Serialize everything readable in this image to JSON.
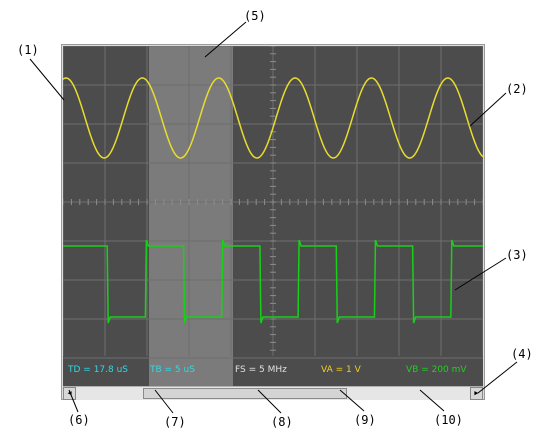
{
  "callouts": {
    "c1": "(1)",
    "c2": "(2)",
    "c3": "(3)",
    "c4": "(4)",
    "c5": "(5)",
    "c6": "(6)",
    "c7": "(7)",
    "c8": "(8)",
    "c9": "(9)",
    "c10": "(10)"
  },
  "status": {
    "td": "TD = 17.8 uS",
    "tb": "TB = 5 uS",
    "fs": "FS = 5 MHz",
    "va": "VA = 1 V",
    "vb": "VB = 200 mV"
  },
  "colors": {
    "screen_bg": "#4c4c4c",
    "grid": "#6e6e6e",
    "cursor_band": "#7b7b7b",
    "channel_a": "#e8dc2e",
    "channel_b": "#18d018",
    "td_text": "#30d8e8",
    "tb_text": "#30d8e8",
    "fs_text": "#e0e0e0",
    "va_text": "#f0d020",
    "vb_text": "#20d020"
  },
  "signals": {
    "channel_a": {
      "shape": "sine",
      "cycles_visible": 5.5
    },
    "channel_b": {
      "shape": "square",
      "cycles_visible": 5.5
    }
  },
  "scrollbar": {
    "left_arrow_icon": "triangle-left-icon",
    "right_arrow_icon": "triangle-right-icon"
  }
}
